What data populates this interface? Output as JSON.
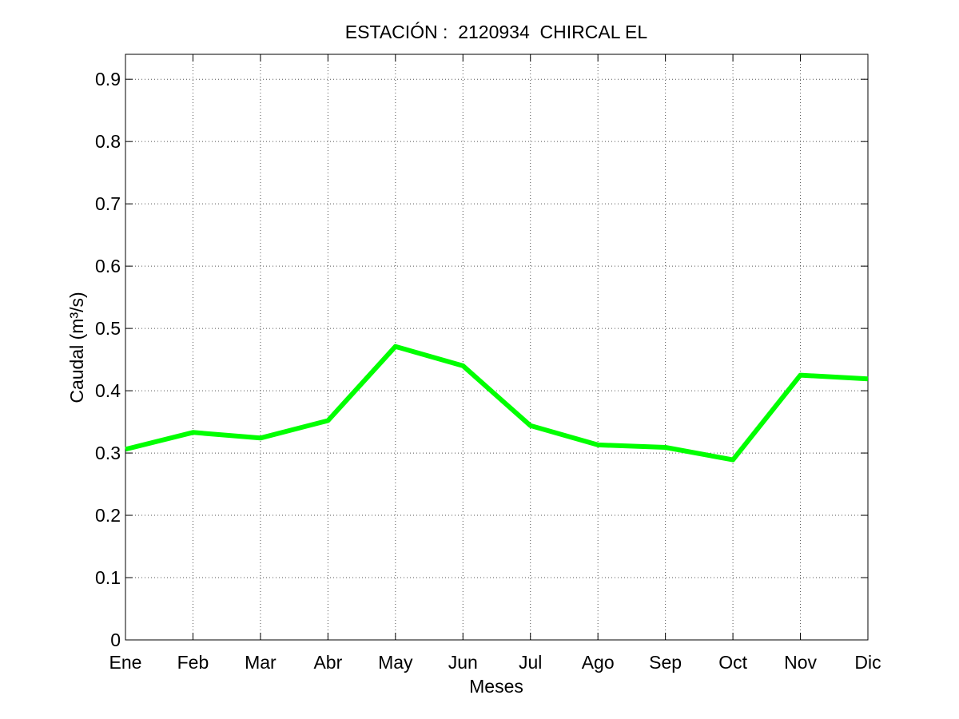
{
  "chart_data": {
    "type": "line",
    "title": "ESTACIÓN :  2120934  CHIRCAL EL",
    "xlabel": "Meses",
    "ylabel": "Caudal (m³/s)",
    "categories": [
      "Ene",
      "Feb",
      "Mar",
      "Abr",
      "May",
      "Jun",
      "Jul",
      "Ago",
      "Sep",
      "Oct",
      "Nov",
      "Dic"
    ],
    "series": [
      {
        "values": [
          0.306,
          0.333,
          0.324,
          0.352,
          0.471,
          0.44,
          0.344,
          0.313,
          0.309,
          0.289,
          0.425,
          0.419
        ],
        "color": "#00ff00"
      }
    ],
    "ylim": [
      0,
      0.94
    ],
    "yticks": [
      "0",
      "0.1",
      "0.2",
      "0.3",
      "0.4",
      "0.5",
      "0.6",
      "0.7",
      "0.8",
      "0.9"
    ],
    "ytick_values": [
      0,
      0.1,
      0.2,
      0.3,
      0.4,
      0.5,
      0.6,
      0.7,
      0.8,
      0.9
    ],
    "grid": true,
    "grid_color": "#555555",
    "axis_color": "#000000",
    "background": "#ffffff"
  }
}
